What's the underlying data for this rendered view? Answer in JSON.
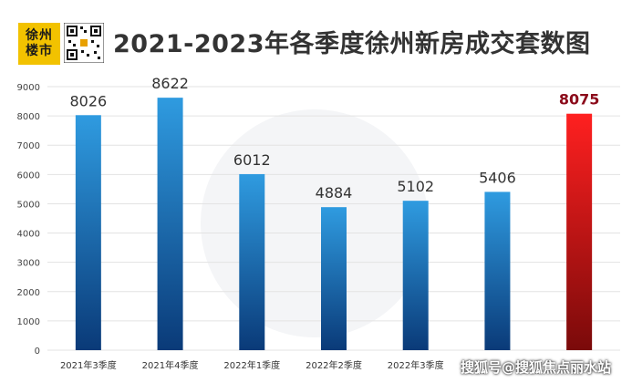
{
  "header": {
    "logo_line1": "徐州",
    "logo_line2": "楼市",
    "title": "2021-2023年各季度徐州新房成交套数图"
  },
  "watermark": "搜狐号@搜狐焦点丽水站",
  "colors": {
    "bar_blue_top": "#2f9be0",
    "bar_blue_bottom": "#0a3a78",
    "bar_red_top": "#ff2020",
    "bar_red_bottom": "#7a0a0a",
    "highlight_label": "#8b0a1a",
    "logo_yellow": "#f2c200"
  },
  "chart_data": {
    "type": "bar",
    "title": "2021-2023年各季度徐州新房成交套数图",
    "xlabel": "",
    "ylabel": "",
    "categories": [
      "2021年3季度",
      "2021年4季度",
      "2022年1季度",
      "2022年2季度",
      "2022年3季度",
      "",
      ""
    ],
    "values": [
      8026,
      8622,
      6012,
      4884,
      5102,
      5406,
      8075
    ],
    "highlight_index": 6,
    "ylim": [
      0,
      9000
    ],
    "yticks": [
      0,
      1000,
      2000,
      3000,
      4000,
      5000,
      6000,
      7000,
      8000,
      9000
    ],
    "grid": true,
    "data_labels": true
  }
}
